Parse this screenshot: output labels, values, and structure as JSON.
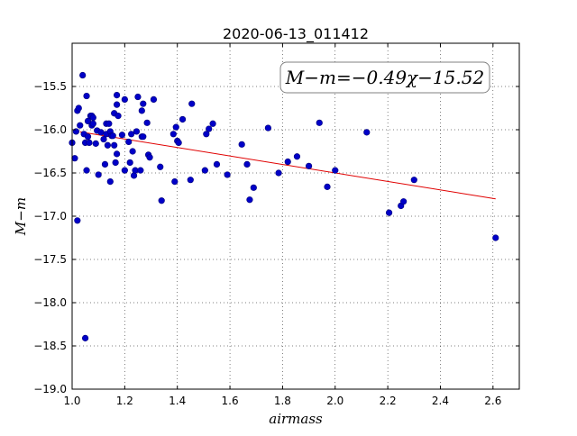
{
  "chart_data": {
    "type": "scatter",
    "title": "2020-06-13_011412",
    "xlabel": "airmass",
    "ylabel": "M−m",
    "xlim": [
      1.0,
      2.7
    ],
    "ylim": [
      -19.0,
      -15.0
    ],
    "y_inverted": true,
    "grid": true,
    "x_ticks": [
      1.0,
      1.2,
      1.4,
      1.6,
      1.8,
      2.0,
      2.2,
      2.4,
      2.6
    ],
    "x_tick_labels": [
      "1.0",
      "1.2",
      "1.4",
      "1.6",
      "1.8",
      "2.0",
      "2.2",
      "2.4",
      "2.6"
    ],
    "y_ticks": [
      -15.5,
      -16.0,
      -16.5,
      -17.0,
      -17.5,
      -18.0,
      -18.5,
      -19.0
    ],
    "y_tick_labels": [
      "−15.5",
      "−16.0",
      "−16.5",
      "−17.0",
      "−17.5",
      "−18.0",
      "−18.5",
      "−19.0"
    ],
    "annotation": "M−m=−0.49χ−15.52",
    "fit": {
      "slope": -0.49,
      "intercept": -15.52,
      "x_range": [
        1.03,
        2.61
      ],
      "color": "#e00000"
    },
    "point_color": "#0000c8",
    "points": [
      [
        1.0,
        -16.15
      ],
      [
        1.01,
        -16.33
      ],
      [
        1.015,
        -16.02
      ],
      [
        1.02,
        -17.05
      ],
      [
        1.02,
        -15.78
      ],
      [
        1.025,
        -15.75
      ],
      [
        1.03,
        -15.95
      ],
      [
        1.04,
        -15.37
      ],
      [
        1.045,
        -16.05
      ],
      [
        1.05,
        -18.41
      ],
      [
        1.05,
        -16.15
      ],
      [
        1.055,
        -15.61
      ],
      [
        1.055,
        -16.47
      ],
      [
        1.06,
        -16.08
      ],
      [
        1.06,
        -15.9
      ],
      [
        1.065,
        -16.15
      ],
      [
        1.07,
        -15.84
      ],
      [
        1.075,
        -15.84
      ],
      [
        1.075,
        -15.95
      ],
      [
        1.08,
        -15.86
      ],
      [
        1.08,
        -15.93
      ],
      [
        1.09,
        -16.16
      ],
      [
        1.095,
        -16.01
      ],
      [
        1.1,
        -16.52
      ],
      [
        1.11,
        -16.03
      ],
      [
        1.12,
        -16.11
      ],
      [
        1.125,
        -16.4
      ],
      [
        1.13,
        -16.05
      ],
      [
        1.13,
        -15.93
      ],
      [
        1.135,
        -16.18
      ],
      [
        1.14,
        -15.93
      ],
      [
        1.145,
        -16.02
      ],
      [
        1.145,
        -16.6
      ],
      [
        1.15,
        -16.07
      ],
      [
        1.155,
        -16.07
      ],
      [
        1.16,
        -16.18
      ],
      [
        1.16,
        -15.81
      ],
      [
        1.165,
        -16.38
      ],
      [
        1.17,
        -16.28
      ],
      [
        1.17,
        -15.6
      ],
      [
        1.17,
        -15.71
      ],
      [
        1.175,
        -15.84
      ],
      [
        1.19,
        -16.06
      ],
      [
        1.2,
        -15.65
      ],
      [
        1.2,
        -16.47
      ],
      [
        1.215,
        -16.14
      ],
      [
        1.22,
        -16.38
      ],
      [
        1.225,
        -16.05
      ],
      [
        1.23,
        -16.25
      ],
      [
        1.235,
        -16.53
      ],
      [
        1.24,
        -16.47
      ],
      [
        1.245,
        -16.02
      ],
      [
        1.25,
        -15.62
      ],
      [
        1.26,
        -16.47
      ],
      [
        1.265,
        -15.78
      ],
      [
        1.265,
        -16.08
      ],
      [
        1.27,
        -16.08
      ],
      [
        1.27,
        -15.7
      ],
      [
        1.285,
        -15.92
      ],
      [
        1.29,
        -16.29
      ],
      [
        1.295,
        -16.32
      ],
      [
        1.31,
        -15.65
      ],
      [
        1.335,
        -16.43
      ],
      [
        1.34,
        -16.82
      ],
      [
        1.385,
        -16.05
      ],
      [
        1.39,
        -16.6
      ],
      [
        1.395,
        -15.97
      ],
      [
        1.4,
        -16.13
      ],
      [
        1.405,
        -16.15
      ],
      [
        1.42,
        -15.88
      ],
      [
        1.45,
        -16.58
      ],
      [
        1.455,
        -15.7
      ],
      [
        1.505,
        -16.47
      ],
      [
        1.51,
        -16.05
      ],
      [
        1.52,
        -15.99
      ],
      [
        1.535,
        -15.93
      ],
      [
        1.55,
        -16.4
      ],
      [
        1.59,
        -16.52
      ],
      [
        1.645,
        -16.17
      ],
      [
        1.665,
        -16.4
      ],
      [
        1.675,
        -16.81
      ],
      [
        1.69,
        -16.67
      ],
      [
        1.745,
        -15.98
      ],
      [
        1.785,
        -16.5
      ],
      [
        1.82,
        -16.37
      ],
      [
        1.855,
        -16.31
      ],
      [
        1.9,
        -16.42
      ],
      [
        1.94,
        -15.92
      ],
      [
        1.97,
        -16.66
      ],
      [
        2.0,
        -16.47
      ],
      [
        2.12,
        -16.03
      ],
      [
        2.205,
        -16.96
      ],
      [
        2.25,
        -16.88
      ],
      [
        2.26,
        -16.83
      ],
      [
        2.3,
        -16.58
      ],
      [
        2.61,
        -17.25
      ]
    ]
  }
}
